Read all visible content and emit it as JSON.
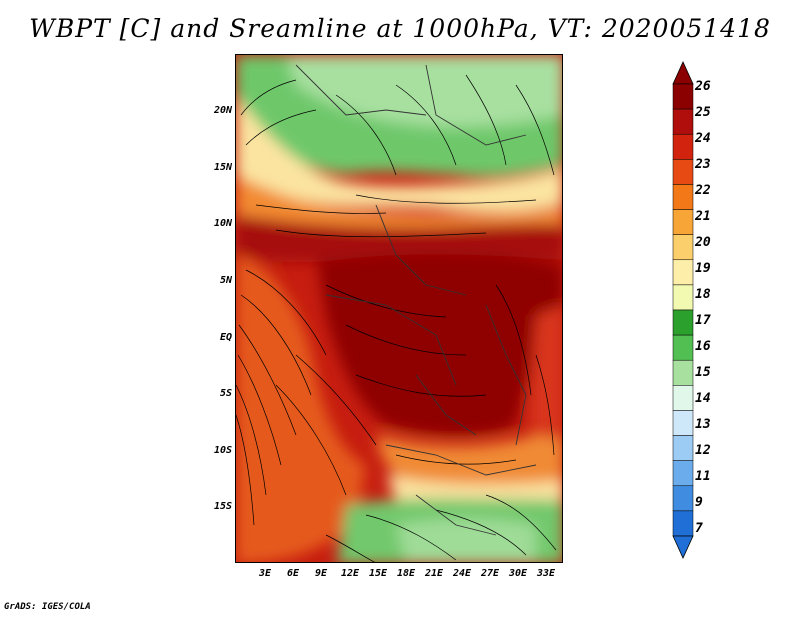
{
  "title": "WBPT [C] and Sreamline at 1000hPa, VT: 2020051418",
  "footer": "GrADS: IGES/COLA",
  "map": {
    "lat_labels": [
      "20N",
      "15N",
      "10N",
      "5N",
      "EQ",
      "5S",
      "10S",
      "15S"
    ],
    "lon_labels": [
      "3E",
      "6E",
      "9E",
      "12E",
      "15E",
      "18E",
      "21E",
      "24E",
      "27E",
      "30E",
      "33E"
    ]
  },
  "colorbar": {
    "labels": [
      "26",
      "25",
      "24",
      "23",
      "22",
      "21",
      "20",
      "19",
      "18",
      "17",
      "16",
      "15",
      "14",
      "13",
      "12",
      "11",
      "9",
      "7"
    ],
    "colors": [
      "#8b0000",
      "#b00d0d",
      "#d2230f",
      "#e84a14",
      "#f27818",
      "#f7a536",
      "#fbcf6b",
      "#fdeeaa",
      "#f2f9b0",
      "#2ca02c",
      "#52bf52",
      "#a7e09f",
      "#e0f7ea",
      "#cfe8f9",
      "#9ccbf3",
      "#6aacec",
      "#3f8ce0",
      "#1f6fd6"
    ]
  }
}
